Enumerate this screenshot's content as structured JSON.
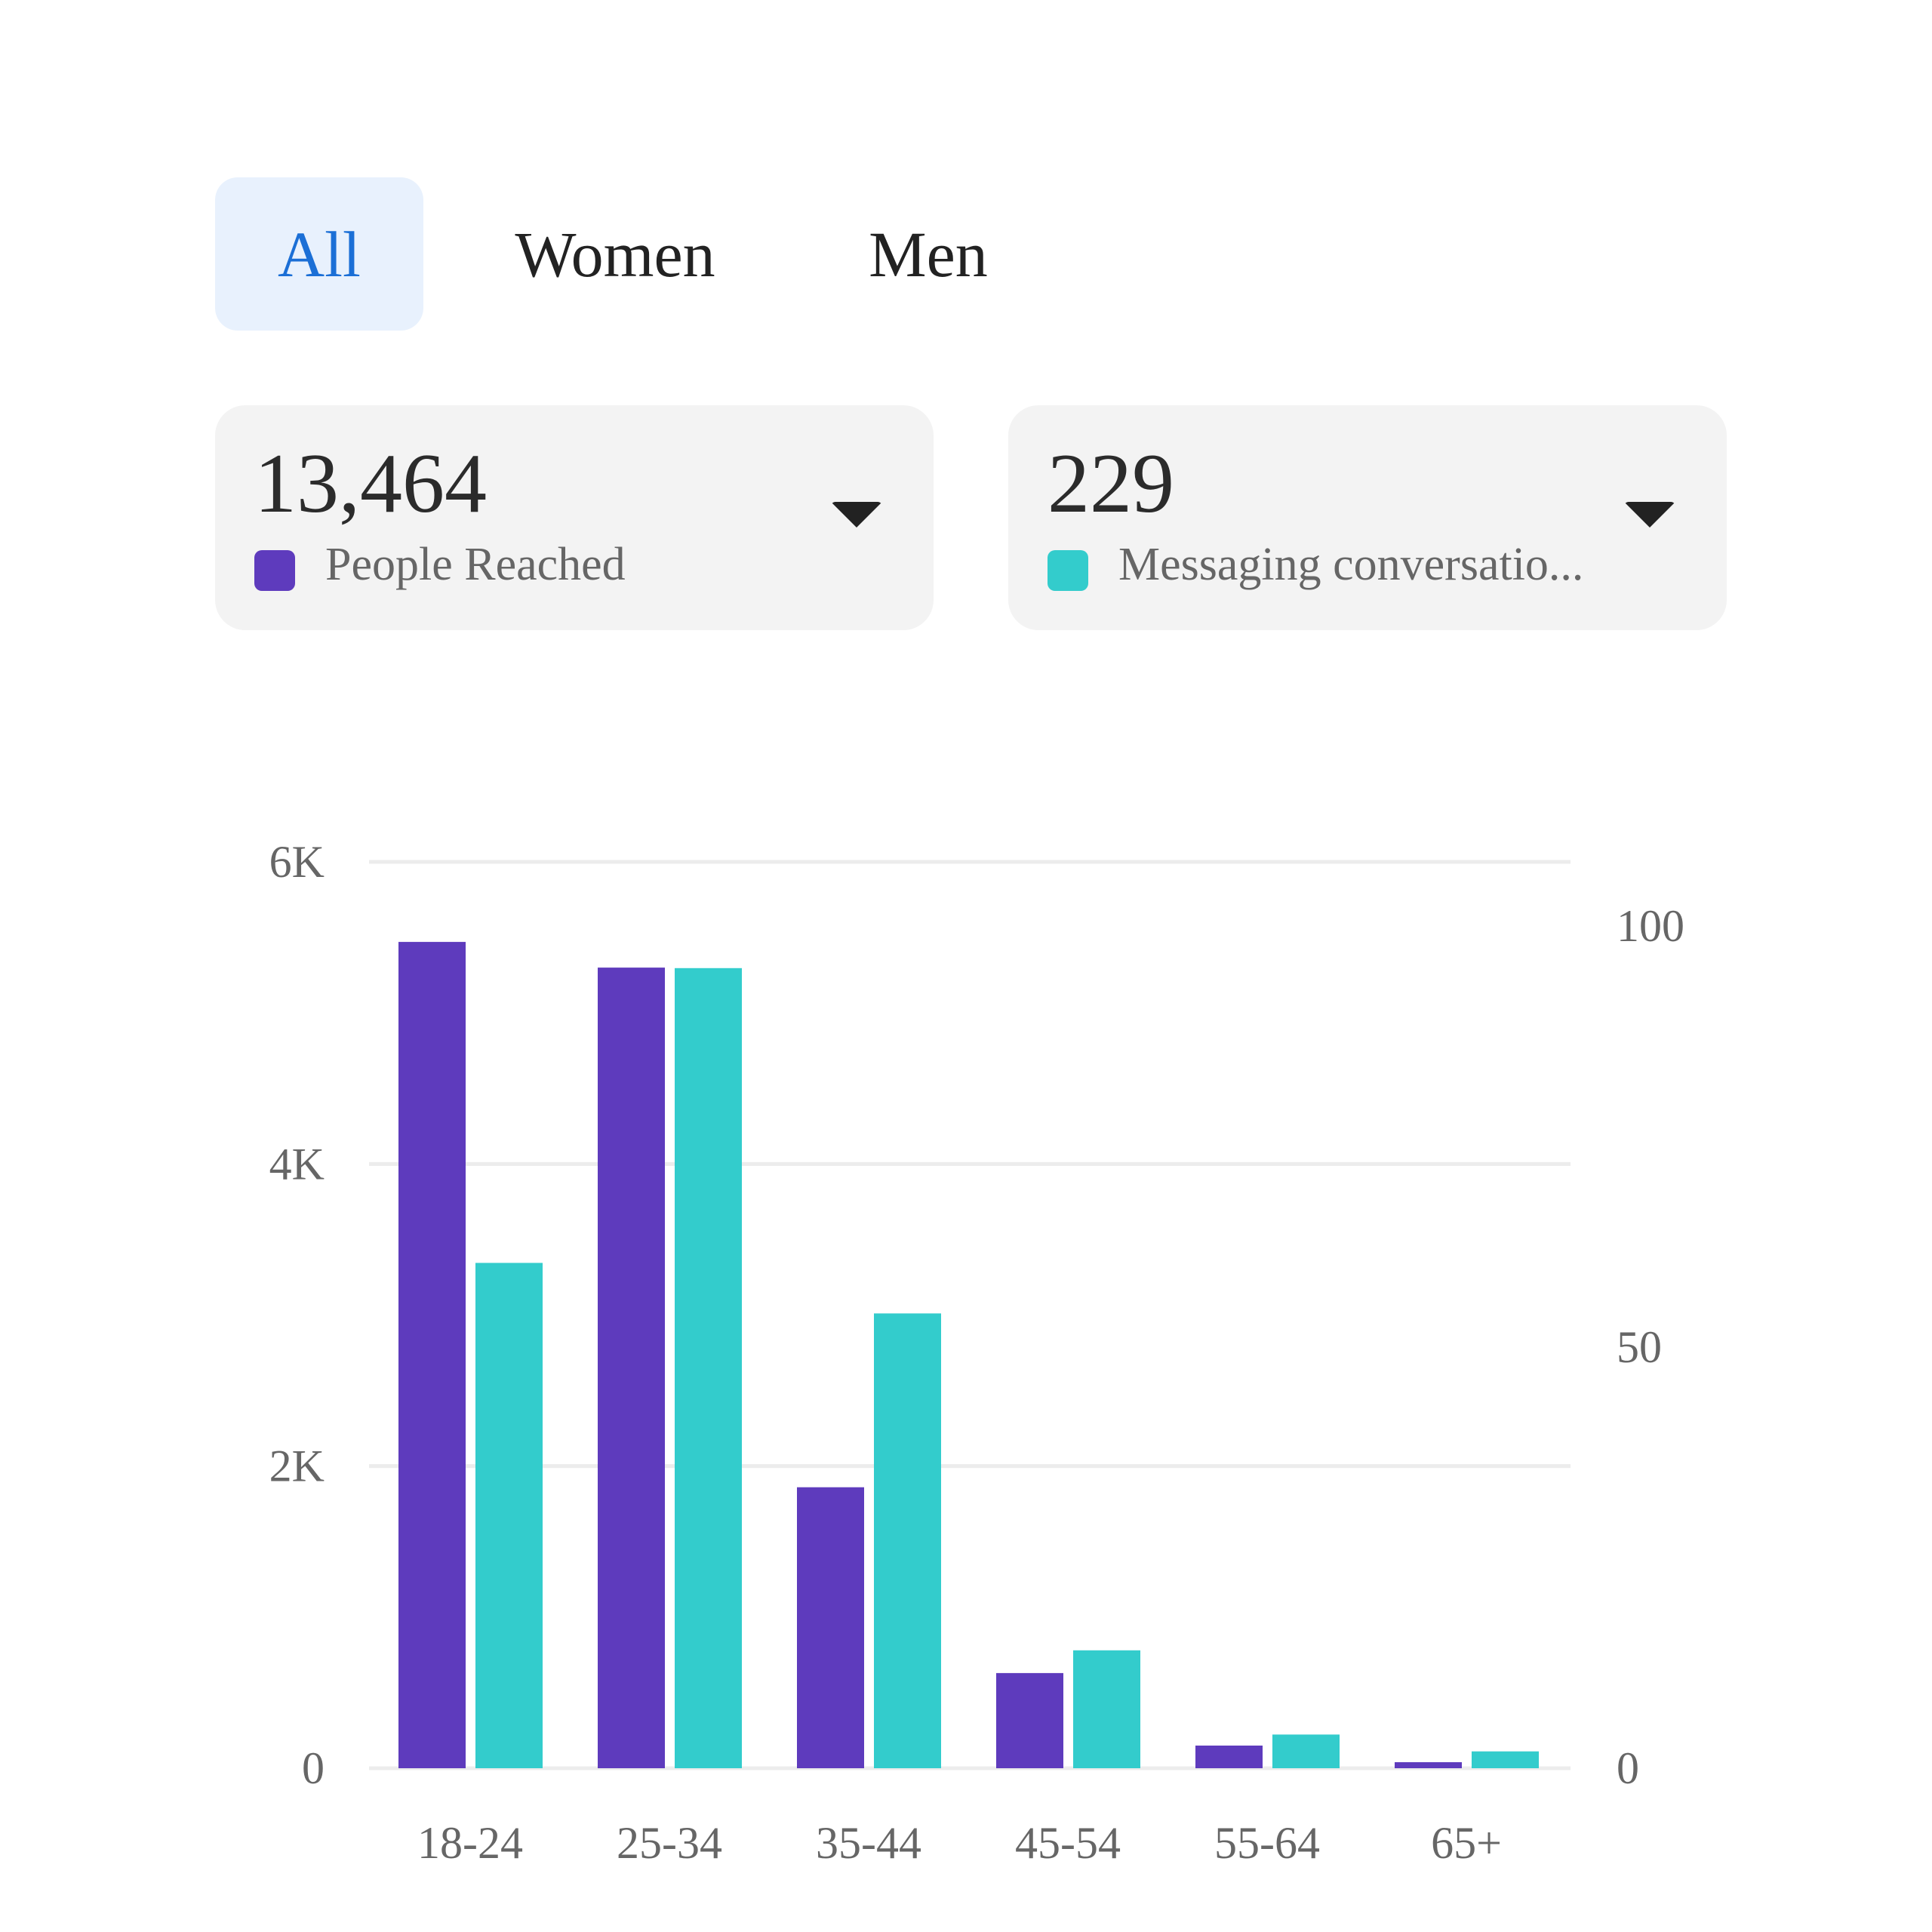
{
  "tabs": [
    {
      "label": "All",
      "active": true
    },
    {
      "label": "Women",
      "active": false
    },
    {
      "label": "Men",
      "active": false
    }
  ],
  "cards": [
    {
      "value": "13,464",
      "label": "People Reached",
      "color": "#5e3bbd"
    },
    {
      "value": "229",
      "label": "Messaging conversatio...",
      "color": "#33cccc"
    }
  ],
  "chart_data": {
    "type": "bar",
    "categories": [
      "18-24",
      "25-34",
      "35-44",
      "45-54",
      "55-64",
      "65+"
    ],
    "series": [
      {
        "name": "People Reached",
        "axis": "left",
        "color": "#5e3bbd",
        "values": [
          5470,
          5300,
          1860,
          630,
          150,
          40
        ]
      },
      {
        "name": "Messaging conversations",
        "axis": "right",
        "color": "#33cccc",
        "values": [
          60,
          95,
          54,
          14,
          4,
          2
        ]
      }
    ],
    "left_axis": {
      "ylim": [
        0,
        6000
      ],
      "ticks": [
        {
          "v": 0,
          "label": "0"
        },
        {
          "v": 2000,
          "label": "2K"
        },
        {
          "v": 4000,
          "label": "4K"
        },
        {
          "v": 6000,
          "label": "6K"
        }
      ]
    },
    "right_axis": {
      "ylim": [
        0,
        100
      ],
      "ticks": [
        {
          "v": 0,
          "label": "0"
        },
        {
          "v": 50,
          "label": "50"
        },
        {
          "v": 100,
          "label": "100"
        }
      ]
    },
    "grid": true
  }
}
